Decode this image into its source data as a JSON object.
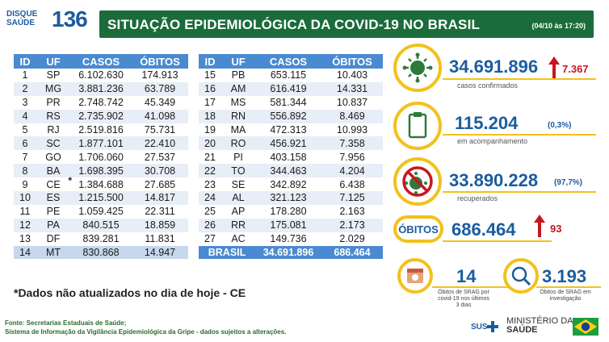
{
  "header": {
    "logo_line1": "DISQUE",
    "logo_line2": "SAÚDE",
    "logo_number": "136",
    "title": "SITUAÇÃO EPIDEMIOLÓGICA DA COVID-19 NO BRASIL",
    "date": "(04/10 às 17:20)"
  },
  "table": {
    "columns": [
      "ID",
      "UF",
      "CASOS",
      "ÓBITOS"
    ],
    "left_rows": [
      [
        "1",
        "SP",
        "6.102.630",
        "174.913"
      ],
      [
        "2",
        "MG",
        "3.881.236",
        "63.789"
      ],
      [
        "3",
        "PR",
        "2.748.742",
        "45.349"
      ],
      [
        "4",
        "RS",
        "2.735.902",
        "41.098"
      ],
      [
        "5",
        "RJ",
        "2.519.816",
        "75.731"
      ],
      [
        "6",
        "SC",
        "1.877.101",
        "22.410"
      ],
      [
        "7",
        "GO",
        "1.706.060",
        "27.537"
      ],
      [
        "8",
        "BA",
        "1.698.395",
        "30.708"
      ],
      [
        "9",
        "CE",
        "1.384.688",
        "27.685"
      ],
      [
        "10",
        "ES",
        "1.215.500",
        "14.817"
      ],
      [
        "11",
        "PE",
        "1.059.425",
        "22.311"
      ],
      [
        "12",
        "PA",
        "840.515",
        "18.859"
      ],
      [
        "13",
        "DF",
        "839.281",
        "11.831"
      ],
      [
        "14",
        "MT",
        "830.868",
        "14.947"
      ]
    ],
    "right_rows": [
      [
        "15",
        "PB",
        "653.115",
        "10.403"
      ],
      [
        "16",
        "AM",
        "616.419",
        "14.331"
      ],
      [
        "17",
        "MS",
        "581.344",
        "10.837"
      ],
      [
        "18",
        "RN",
        "556.892",
        "8.469"
      ],
      [
        "19",
        "MA",
        "472.313",
        "10.993"
      ],
      [
        "20",
        "RO",
        "456.921",
        "7.358"
      ],
      [
        "21",
        "PI",
        "403.158",
        "7.956"
      ],
      [
        "22",
        "TO",
        "344.463",
        "4.204"
      ],
      [
        "23",
        "SE",
        "342.892",
        "6.438"
      ],
      [
        "24",
        "AL",
        "321.123",
        "7.125"
      ],
      [
        "25",
        "AP",
        "178.280",
        "2.163"
      ],
      [
        "26",
        "RR",
        "175.081",
        "2.173"
      ],
      [
        "27",
        "AC",
        "149.736",
        "2.029"
      ]
    ],
    "total": {
      "label": "BRASIL",
      "casos": "34.691.896",
      "obitos": "686.464"
    }
  },
  "note": "*Dados não atualizados no dia de hoje - CE",
  "sources": {
    "line1": "Fonte: Secretarias Estaduais de Saúde;",
    "line2": "Sistema de Informação da Vigilância Epidemiológica da Gripe - dados sujeitos a alterações."
  },
  "indicators": {
    "confirmed": {
      "value": "34.691.896",
      "delta": "7.367",
      "label": "casos confirmados",
      "icon": "virus-icon"
    },
    "monitoring": {
      "value": "115.204",
      "pct": "(0,3%)",
      "label": "em acompanhamento",
      "icon": "clipboard-icon"
    },
    "recovered": {
      "value": "33.890.228",
      "pct": "(97,7%)",
      "label": "recuperados",
      "icon": "no-virus-icon"
    },
    "deaths": {
      "badge": "ÓBITOS",
      "value": "686.464",
      "delta": "93"
    },
    "srag_recent": {
      "value": "14",
      "label_lines": [
        "Óbitos de SRAG por",
        "covid-19 nos últimos",
        "3 dias"
      ],
      "icon": "calendar-icon"
    },
    "srag_investigation": {
      "value": "3.193",
      "label_lines": [
        "Óbitos de SRAG em",
        "investigação"
      ],
      "icon": "magnifier-icon"
    }
  },
  "footer": {
    "sus": "SUS",
    "ministry_line1": "MINISTÉRIO DA",
    "ministry_line2": "SAÚDE"
  },
  "colors": {
    "title_green": "#1b6c3b",
    "table_blue": "#4a8ad0",
    "value_blue": "#1b5c9e",
    "accent_yellow": "#f2c11c",
    "alert_red": "#c8161d"
  }
}
